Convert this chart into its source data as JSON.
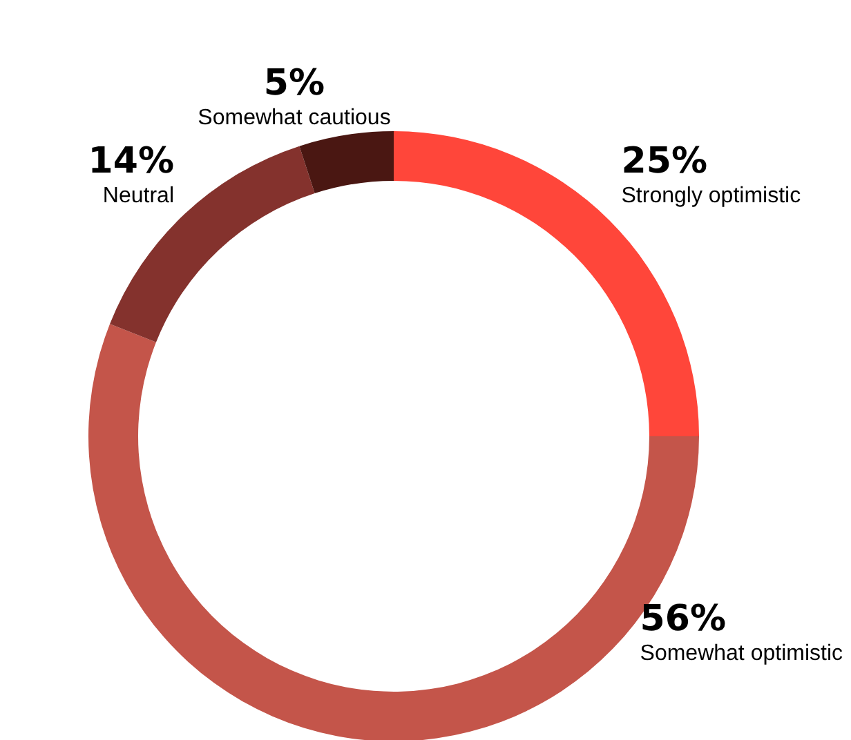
{
  "chart_data": {
    "type": "donut",
    "categories": [
      "Strongly optimistic",
      "Somewhat optimistic",
      "Neutral",
      "Somewhat cautious"
    ],
    "values": [
      25,
      56,
      14,
      5
    ],
    "colors": [
      "#ff463a",
      "#c4554a",
      "#84322d",
      "#4a1712"
    ],
    "value_labels": [
      "25%",
      "56%",
      "14%",
      "5%"
    ]
  }
}
